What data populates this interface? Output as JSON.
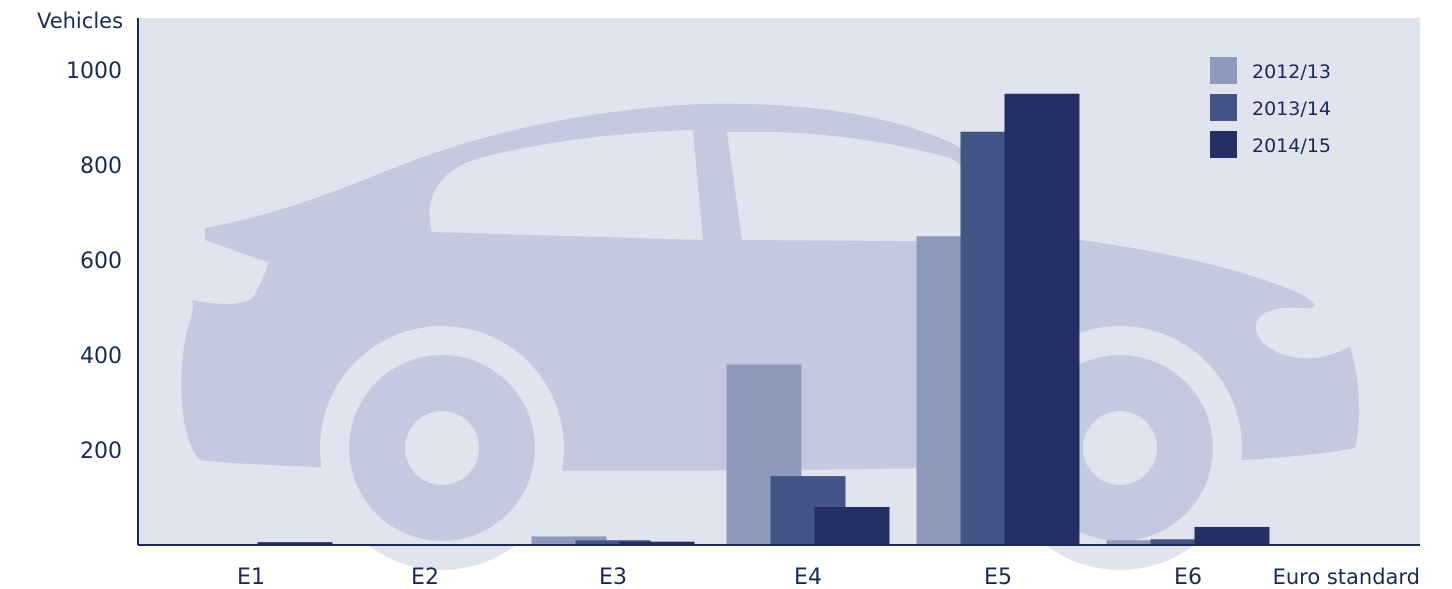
{
  "chart_data": {
    "type": "bar",
    "title": "",
    "xlabel": "Euro standard",
    "ylabel": "Vehicles",
    "categories": [
      "E1",
      "E2",
      "E3",
      "E4",
      "E5",
      "E6"
    ],
    "series": [
      {
        "name": "2012/13",
        "values": [
          0,
          0,
          18,
          380,
          650,
          10
        ],
        "color": "#8f99bb"
      },
      {
        "name": "2013/14",
        "values": [
          0,
          0,
          10,
          145,
          870,
          12
        ],
        "color": "#435487"
      },
      {
        "name": "2014/15",
        "values": [
          6,
          0,
          7,
          80,
          950,
          38
        ],
        "color": "#233063"
      }
    ],
    "yticks": [
      200,
      400,
      600,
      800,
      1000
    ],
    "ylim": [
      0,
      1100
    ],
    "legend": "top-right",
    "grid": false
  },
  "colors": {
    "plot_background": "#e1e3ef",
    "car_silhouette": "#c4c9df",
    "axis": "#1a2a55",
    "text": "#1a2a55"
  },
  "icons": {
    "background": "car-silhouette-icon"
  }
}
